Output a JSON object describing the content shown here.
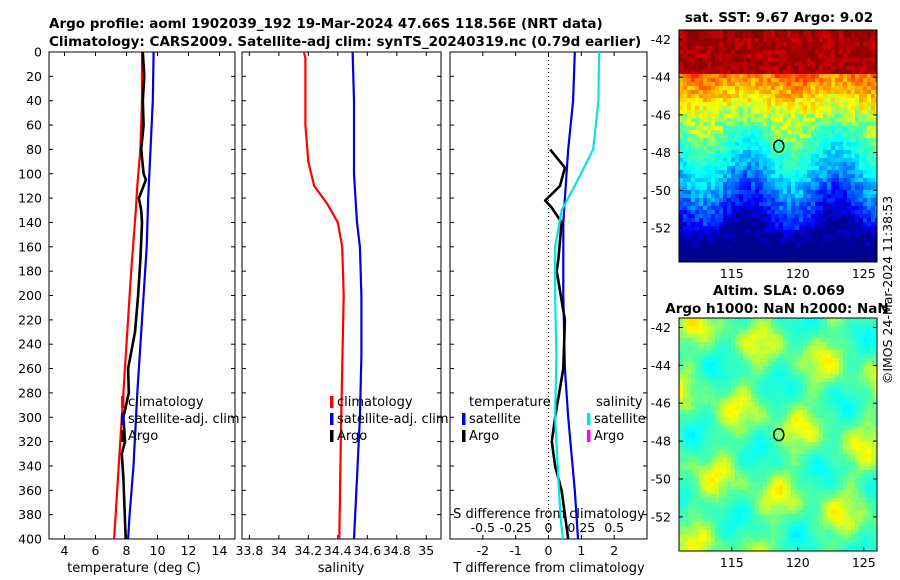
{
  "titles": {
    "line1": "Argo profile: aoml 1902039_192 19-Mar-2024 47.66S 118.56E (NRT data)",
    "line2": "Climatology: CARS2009. Satellite-adj clim: synTS_20240319.nc (0.79d earlier)",
    "sst_title": "sat. SST: 9.67 Argo: 9.02",
    "sla_title1": "Altim. SLA: 0.069",
    "sla_title2": "Argo h1000: NaN h2000: NaN",
    "watermark": "©IMOS 24-Mar-2024 11:38:53"
  },
  "colors": {
    "climatology": "#ff0000",
    "satellite": "#0000dd",
    "argo": "#000000",
    "sal_satellite": "#00e5e5",
    "sal_argo": "#ff00ff"
  },
  "chart_data": [
    {
      "type": "line",
      "name": "temperature-profile",
      "xlabel": "temperature (deg C)",
      "ylabel": "depth",
      "xlim": [
        3,
        15
      ],
      "ylim": [
        400,
        0
      ],
      "xticks": [
        "4",
        "6",
        "8",
        "10",
        "12",
        "14"
      ],
      "xtick_values": [
        4,
        6,
        8,
        10,
        12,
        14
      ],
      "yticks": [
        "0",
        "20",
        "40",
        "60",
        "80",
        "100",
        "120",
        "140",
        "160",
        "180",
        "200",
        "220",
        "240",
        "260",
        "280",
        "300",
        "320",
        "340",
        "360",
        "380",
        "400"
      ],
      "ytick_values": [
        0,
        20,
        40,
        60,
        80,
        100,
        120,
        140,
        160,
        180,
        200,
        220,
        240,
        260,
        280,
        300,
        320,
        340,
        360,
        380,
        400
      ],
      "legend": [
        "climatology",
        "satellite-adj. clim",
        "Argo"
      ],
      "series": [
        {
          "name": "climatology",
          "color": "#ff0000",
          "points": [
            [
              9.0,
              0
            ],
            [
              9.0,
              40
            ],
            [
              8.9,
              80
            ],
            [
              8.7,
              110
            ],
            [
              8.6,
              130
            ],
            [
              8.3,
              180
            ],
            [
              7.95,
              250
            ],
            [
              7.7,
              300
            ],
            [
              7.4,
              360
            ],
            [
              7.2,
              400
            ]
          ]
        },
        {
          "name": "satellite-adj. clim",
          "color": "#0000dd",
          "points": [
            [
              9.75,
              0
            ],
            [
              9.7,
              40
            ],
            [
              9.55,
              80
            ],
            [
              9.4,
              120
            ],
            [
              9.3,
              160
            ],
            [
              9.0,
              220
            ],
            [
              8.7,
              280
            ],
            [
              8.45,
              340
            ],
            [
              8.2,
              380
            ],
            [
              8.1,
              400
            ]
          ]
        },
        {
          "name": "Argo",
          "color": "#000000",
          "points": [
            [
              9.05,
              0
            ],
            [
              9.15,
              20
            ],
            [
              9.05,
              40
            ],
            [
              9.1,
              60
            ],
            [
              8.95,
              80
            ],
            [
              9.1,
              100
            ],
            [
              9.25,
              105
            ],
            [
              8.8,
              120
            ],
            [
              8.95,
              130
            ],
            [
              9.0,
              140
            ],
            [
              8.9,
              170
            ],
            [
              8.75,
              200
            ],
            [
              8.55,
              230
            ],
            [
              8.1,
              260
            ],
            [
              8.15,
              280
            ],
            [
              7.8,
              300
            ],
            [
              7.9,
              320
            ],
            [
              7.7,
              330
            ],
            [
              7.8,
              350
            ],
            [
              7.95,
              400
            ]
          ]
        }
      ]
    },
    {
      "type": "line",
      "name": "salinity-profile",
      "xlabel": "salinity",
      "xlim": [
        33.75,
        35.1
      ],
      "ylim": [
        400,
        0
      ],
      "xticks": [
        "33.8",
        "34",
        "34.2",
        "34.4",
        "34.6",
        "34.8",
        "35"
      ],
      "xtick_values": [
        33.8,
        34,
        34.2,
        34.4,
        34.6,
        34.8,
        35
      ],
      "legend": [
        "climatology",
        "satellite-adj. clim",
        "Argo"
      ],
      "series": [
        {
          "name": "climatology",
          "color": "#ff0000",
          "points": [
            [
              34.17,
              0
            ],
            [
              34.18,
              5
            ],
            [
              34.18,
              60
            ],
            [
              34.2,
              90
            ],
            [
              34.24,
              110
            ],
            [
              34.33,
              125
            ],
            [
              34.4,
              140
            ],
            [
              34.43,
              160
            ],
            [
              34.44,
              200
            ],
            [
              34.43,
              260
            ],
            [
              34.42,
              320
            ],
            [
              34.41,
              400
            ]
          ]
        },
        {
          "name": "satellite-adj. clim",
          "color": "#0000dd",
          "points": [
            [
              34.5,
              0
            ],
            [
              34.51,
              40
            ],
            [
              34.51,
              100
            ],
            [
              34.53,
              140
            ],
            [
              34.55,
              160
            ],
            [
              34.56,
              200
            ],
            [
              34.56,
              250
            ],
            [
              34.55,
              300
            ],
            [
              34.53,
              350
            ],
            [
              34.51,
              400
            ]
          ]
        }
      ]
    },
    {
      "type": "line",
      "name": "difference-profile",
      "xlabel": "T difference from climatology",
      "xlabel_top": "S difference from climatology",
      "xlim": [
        -3,
        3
      ],
      "ylim": [
        400,
        0
      ],
      "xticks": [
        "-2",
        "-1",
        "0",
        "1",
        "2"
      ],
      "xtick_values": [
        -2,
        -1,
        0,
        1,
        2
      ],
      "sticks": [
        "-0.5",
        "-0.25",
        "0",
        "0.25",
        "0.5"
      ],
      "stick_values": [
        -0.5,
        -0.25,
        0,
        0.25,
        0.5
      ],
      "s_scale": 4,
      "legend_temperature": {
        "title": "temperature",
        "items": [
          "satellite",
          "Argo"
        ]
      },
      "legend_salinity": {
        "title": "salinity",
        "items": [
          "satellite",
          "Argo"
        ]
      },
      "series": [
        {
          "name": "T satellite",
          "color": "#0000dd",
          "points": [
            [
              0.8,
              0
            ],
            [
              0.75,
              40
            ],
            [
              0.6,
              80
            ],
            [
              0.5,
              120
            ],
            [
              0.45,
              140
            ],
            [
              0.45,
              200
            ],
            [
              0.5,
              260
            ],
            [
              0.6,
              300
            ],
            [
              0.8,
              360
            ],
            [
              0.9,
              400
            ]
          ]
        },
        {
          "name": "T Argo",
          "color": "#000000",
          "points": [
            [
              0.05,
              80
            ],
            [
              0.5,
              95
            ],
            [
              0.35,
              110
            ],
            [
              -0.1,
              122
            ],
            [
              0.1,
              128
            ],
            [
              0.4,
              140
            ],
            [
              0.3,
              170
            ],
            [
              0.25,
              180
            ],
            [
              0.5,
              220
            ],
            [
              0.45,
              260
            ],
            [
              0.2,
              300
            ],
            [
              0.1,
              320
            ],
            [
              0.2,
              340
            ],
            [
              0.4,
              360
            ],
            [
              0.5,
              380
            ],
            [
              0.6,
              400
            ]
          ]
        },
        {
          "name": "S satellite",
          "color": "#00e5e5",
          "points": [
            [
              0.385,
              0
            ],
            [
              0.38,
              40
            ],
            [
              0.34,
              80
            ],
            [
              0.2,
              110
            ],
            [
              0.1,
              130
            ],
            [
              0.05,
              160
            ],
            [
              0.05,
              200
            ],
            [
              0.06,
              250
            ],
            [
              0.05,
              300
            ],
            [
              0.07,
              340
            ],
            [
              0.09,
              380
            ],
            [
              0.11,
              400
            ]
          ]
        }
      ]
    },
    {
      "type": "heatmap",
      "name": "sst-map",
      "title": "sat. SST: 9.67 Argo: 9.02",
      "xlim": [
        111,
        126
      ],
      "ylim": [
        -53.8,
        -41.5
      ],
      "xticks": [
        "115",
        "120",
        "125"
      ],
      "xtick_values": [
        115,
        120,
        125
      ],
      "yticks": [
        "-42",
        "-44",
        "-46",
        "-48",
        "-50",
        "-52"
      ],
      "ytick_values": [
        -42,
        -44,
        -46,
        -48,
        -50,
        -52
      ],
      "marker": {
        "lon": 118.56,
        "lat": -47.66
      }
    },
    {
      "type": "heatmap",
      "name": "sla-map",
      "title": "Altim. SLA: 0.069",
      "xlim": [
        111,
        126
      ],
      "ylim": [
        -53.8,
        -41.5
      ],
      "xticks": [
        "115",
        "120",
        "125"
      ],
      "xtick_values": [
        115,
        120,
        125
      ],
      "yticks": [
        "-42",
        "-44",
        "-46",
        "-48",
        "-50",
        "-52"
      ],
      "ytick_values": [
        -42,
        -44,
        -46,
        -48,
        -50,
        -52
      ],
      "marker": {
        "lon": 118.56,
        "lat": -47.66
      }
    }
  ]
}
